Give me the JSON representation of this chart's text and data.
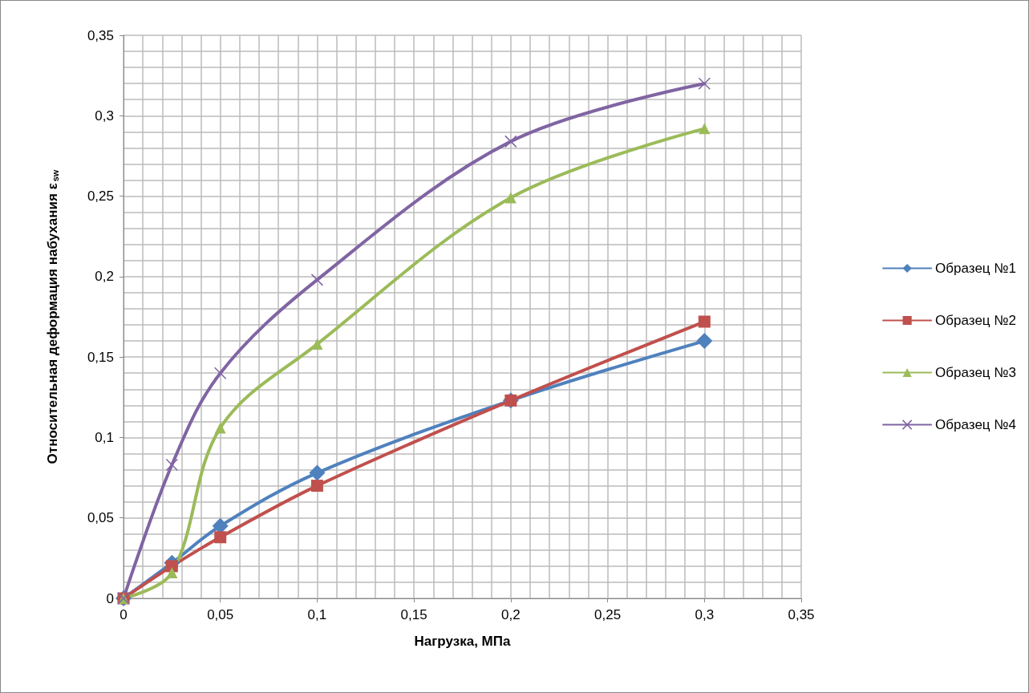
{
  "chart_data": {
    "type": "line",
    "xlabel": "Нагрузка, МПа",
    "ylabel": "Относительная деформация набухания ε$_{sw}$",
    "x": [
      0,
      0.025,
      0.05,
      0.1,
      0.2,
      0.3
    ],
    "series": [
      {
        "name": "Образец №1",
        "color": "#4f81bd",
        "marker": "diamond",
        "values": [
          0,
          0.022,
          0.045,
          0.078,
          0.123,
          0.16
        ]
      },
      {
        "name": "Образец №2",
        "color": "#c0504d",
        "marker": "square",
        "values": [
          0,
          0.02,
          0.038,
          0.07,
          0.123,
          0.172
        ]
      },
      {
        "name": "Образец №3",
        "color": "#9bbb59",
        "marker": "triangle",
        "values": [
          0,
          0.016,
          0.106,
          0.158,
          0.249,
          0.292
        ]
      },
      {
        "name": "Образец №4",
        "color": "#8064a2",
        "marker": "cross",
        "values": [
          0,
          0.083,
          0.14,
          0.198,
          0.284,
          0.32
        ]
      }
    ],
    "xlim": [
      0,
      0.35
    ],
    "ylim": [
      0,
      0.35
    ],
    "xticks": [
      0,
      {
        "value": 0.05,
        "label": "0,05"
      },
      {
        "value": 0.1,
        "label": "0,1"
      },
      {
        "value": 0.15,
        "label": "0,15"
      },
      {
        "value": 0.2,
        "label": "0,2"
      },
      {
        "value": 0.25,
        "label": "0,25"
      },
      {
        "value": 0.3,
        "label": "0,3"
      },
      {
        "value": 0.35,
        "label": "0,35"
      }
    ],
    "yticks": [
      0,
      {
        "value": 0.05,
        "label": "0,05"
      },
      {
        "value": 0.1,
        "label": "0,1"
      },
      {
        "value": 0.15,
        "label": "0,15"
      },
      {
        "value": 0.2,
        "label": "0,2"
      },
      {
        "value": 0.25,
        "label": "0,25"
      },
      {
        "value": 0.3,
        "label": "0,3"
      },
      {
        "value": 0.35,
        "label": "0,35"
      }
    ],
    "grid": true,
    "legend": "right",
    "line_style": "solid"
  }
}
